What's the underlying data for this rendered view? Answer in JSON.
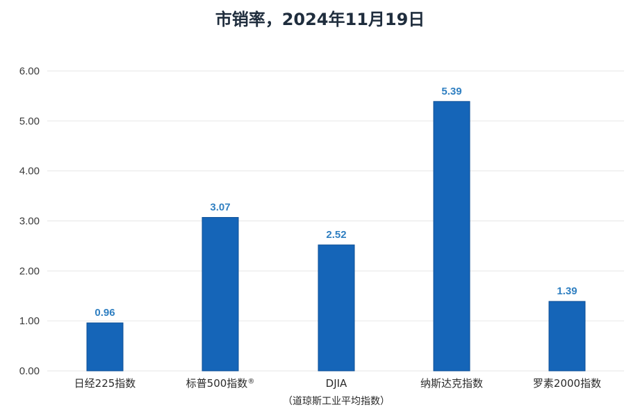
{
  "chart_data": {
    "type": "bar",
    "title": "市销率，2024年11月19日",
    "categories": [
      "日经225指数",
      "标普500指数®",
      "DJIA",
      "纳斯达克指数",
      "罗素2000指数"
    ],
    "category_sublabels": [
      "",
      "",
      "（道琼斯工业平均指数）",
      "",
      ""
    ],
    "values": [
      0.96,
      3.07,
      2.52,
      5.39,
      1.39
    ],
    "value_labels": [
      "0.96",
      "3.07",
      "2.52",
      "5.39",
      "1.39"
    ],
    "ylim": [
      0,
      6
    ],
    "yticks": [
      "0.00",
      "1.00",
      "2.00",
      "3.00",
      "4.00",
      "5.00",
      "6.00"
    ],
    "xlabel": "",
    "ylabel": "",
    "grid": true,
    "legend": "none",
    "colors": {
      "bar": "#1565b8",
      "bar_edge": "#0d4f96",
      "grid": "#e6e6e6",
      "label": "#2f7fc1"
    }
  }
}
